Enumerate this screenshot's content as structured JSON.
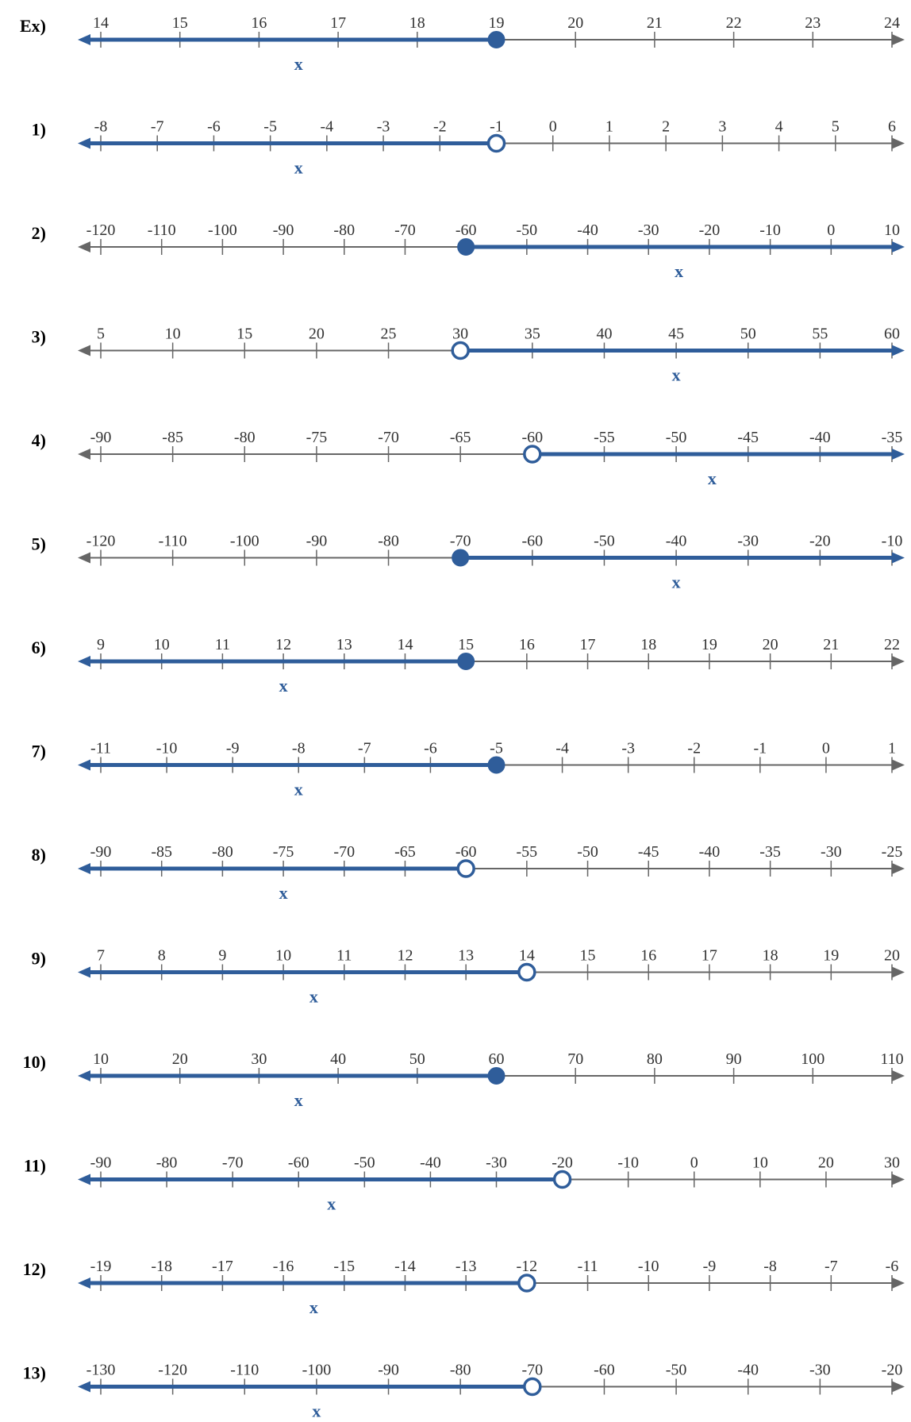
{
  "colors": {
    "axis": "#666666",
    "accent": "#2f5d9a",
    "background": "#ffffff"
  },
  "problems": [
    {
      "label": "Ex)",
      "ticks": [
        "14",
        "15",
        "16",
        "17",
        "18",
        "19",
        "20",
        "21",
        "22",
        "23",
        "24"
      ],
      "point_value": 19,
      "closed": true,
      "direction": "left",
      "variable": "x"
    },
    {
      "label": "1)",
      "ticks": [
        "-8",
        "-7",
        "-6",
        "-5",
        "-4",
        "-3",
        "-2",
        "-1",
        "0",
        "1",
        "2",
        "3",
        "4",
        "5",
        "6"
      ],
      "point_value": -1,
      "closed": false,
      "direction": "left",
      "variable": "x"
    },
    {
      "label": "2)",
      "ticks": [
        "-120",
        "-110",
        "-100",
        "-90",
        "-80",
        "-70",
        "-60",
        "-50",
        "-40",
        "-30",
        "-20",
        "-10",
        "0",
        "10"
      ],
      "point_value": -60,
      "closed": true,
      "direction": "right",
      "variable": "x"
    },
    {
      "label": "3)",
      "ticks": [
        "5",
        "10",
        "15",
        "20",
        "25",
        "30",
        "35",
        "40",
        "45",
        "50",
        "55",
        "60"
      ],
      "point_value": 30,
      "closed": false,
      "direction": "right",
      "variable": "x"
    },
    {
      "label": "4)",
      "ticks": [
        "-90",
        "-85",
        "-80",
        "-75",
        "-70",
        "-65",
        "-60",
        "-55",
        "-50",
        "-45",
        "-40",
        "-35"
      ],
      "point_value": -60,
      "closed": false,
      "direction": "right",
      "variable": "x"
    },
    {
      "label": "5)",
      "ticks": [
        "-120",
        "-110",
        "-100",
        "-90",
        "-80",
        "-70",
        "-60",
        "-50",
        "-40",
        "-30",
        "-20",
        "-10"
      ],
      "point_value": -70,
      "closed": true,
      "direction": "right",
      "variable": "x"
    },
    {
      "label": "6)",
      "ticks": [
        "9",
        "10",
        "11",
        "12",
        "13",
        "14",
        "15",
        "16",
        "17",
        "18",
        "19",
        "20",
        "21",
        "22"
      ],
      "point_value": 15,
      "closed": true,
      "direction": "left",
      "variable": "x"
    },
    {
      "label": "7)",
      "ticks": [
        "-11",
        "-10",
        "-9",
        "-8",
        "-7",
        "-6",
        "-5",
        "-4",
        "-3",
        "-2",
        "-1",
        "0",
        "1"
      ],
      "point_value": -5,
      "closed": true,
      "direction": "left",
      "variable": "x"
    },
    {
      "label": "8)",
      "ticks": [
        "-90",
        "-85",
        "-80",
        "-75",
        "-70",
        "-65",
        "-60",
        "-55",
        "-50",
        "-45",
        "-40",
        "-35",
        "-30",
        "-25"
      ],
      "point_value": -60,
      "closed": false,
      "direction": "left",
      "variable": "x"
    },
    {
      "label": "9)",
      "ticks": [
        "7",
        "8",
        "9",
        "10",
        "11",
        "12",
        "13",
        "14",
        "15",
        "16",
        "17",
        "18",
        "19",
        "20"
      ],
      "point_value": 14,
      "closed": false,
      "direction": "left",
      "variable": "x"
    },
    {
      "label": "10)",
      "ticks": [
        "10",
        "20",
        "30",
        "40",
        "50",
        "60",
        "70",
        "80",
        "90",
        "100",
        "110"
      ],
      "point_value": 60,
      "closed": true,
      "direction": "left",
      "variable": "x"
    },
    {
      "label": "11)",
      "ticks": [
        "-90",
        "-80",
        "-70",
        "-60",
        "-50",
        "-40",
        "-30",
        "-20",
        "-10",
        "0",
        "10",
        "20",
        "30"
      ],
      "point_value": -20,
      "closed": false,
      "direction": "left",
      "variable": "x"
    },
    {
      "label": "12)",
      "ticks": [
        "-19",
        "-18",
        "-17",
        "-16",
        "-15",
        "-14",
        "-13",
        "-12",
        "-11",
        "-10",
        "-9",
        "-8",
        "-7",
        "-6"
      ],
      "point_value": -12,
      "closed": false,
      "direction": "left",
      "variable": "x"
    },
    {
      "label": "13)",
      "ticks": [
        "-130",
        "-120",
        "-110",
        "-100",
        "-90",
        "-80",
        "-70",
        "-60",
        "-50",
        "-40",
        "-30",
        "-20"
      ],
      "point_value": -70,
      "closed": false,
      "direction": "left",
      "variable": "x"
    }
  ]
}
